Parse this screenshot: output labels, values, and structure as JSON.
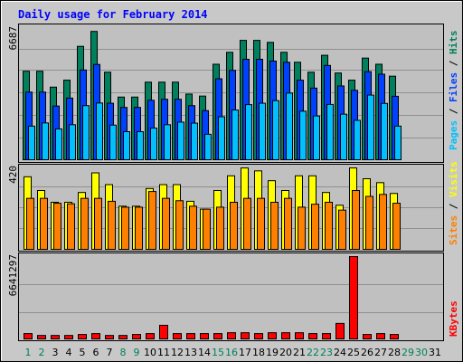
{
  "chart_data": [
    {
      "type": "bar",
      "title": "Daily usage for February 2014",
      "panel": "top",
      "ymax_label": "6687",
      "ymax": 6687,
      "series_labels": [
        "Pages",
        "Files",
        "Hits"
      ],
      "categories": [
        "1",
        "2",
        "3",
        "4",
        "5",
        "6",
        "7",
        "8",
        "9",
        "10",
        "11",
        "12",
        "13",
        "14",
        "15",
        "16",
        "17",
        "18",
        "19",
        "20",
        "21",
        "22",
        "23",
        "24",
        "25",
        "26",
        "27",
        "28",
        "29",
        "30",
        "31"
      ],
      "series": [
        {
          "name": "Hits",
          "values": [
            4450,
            4450,
            3650,
            4000,
            5700,
            6450,
            4400,
            3150,
            3150,
            3900,
            3900,
            3900,
            3300,
            3200,
            4800,
            5400,
            6000,
            6000,
            5900,
            5400,
            4900,
            4400,
            5250,
            4360,
            4000,
            5110,
            4800,
            4200,
            0,
            0,
            0
          ]
        },
        {
          "name": "Files",
          "values": [
            3400,
            3400,
            2700,
            3100,
            4510,
            4790,
            2840,
            2630,
            2630,
            2990,
            3040,
            3040,
            2720,
            2470,
            4070,
            4490,
            5050,
            5050,
            4960,
            4900,
            4000,
            3600,
            4740,
            3710,
            3490,
            4430,
            4300,
            3190,
            0,
            0,
            0
          ]
        },
        {
          "name": "Pages",
          "values": [
            1690,
            1850,
            1550,
            1760,
            2720,
            2850,
            1740,
            1410,
            1410,
            1590,
            1760,
            1890,
            1840,
            1280,
            2160,
            2500,
            2770,
            2840,
            2970,
            3350,
            2440,
            2200,
            2780,
            2290,
            1980,
            3250,
            2830,
            1690,
            0,
            0,
            0
          ]
        }
      ]
    },
    {
      "type": "bar",
      "panel": "middle",
      "ymax_label": "420",
      "ymax": 420,
      "series_labels": [
        "Sites",
        "Visits"
      ],
      "categories": [
        "1",
        "2",
        "3",
        "4",
        "5",
        "6",
        "7",
        "8",
        "9",
        "10",
        "11",
        "12",
        "13",
        "14",
        "15",
        "16",
        "17",
        "18",
        "19",
        "20",
        "21",
        "22",
        "23",
        "24",
        "25",
        "26",
        "27",
        "28",
        "29",
        "30",
        "31"
      ],
      "series": [
        {
          "name": "Visits",
          "values": [
            370,
            300,
            240,
            240,
            290,
            390,
            330,
            220,
            220,
            310,
            330,
            330,
            245,
            205,
            300,
            375,
            415,
            400,
            350,
            300,
            375,
            375,
            290,
            225,
            415,
            360,
            340,
            285,
            0,
            0,
            0
          ]
        },
        {
          "name": "Sites",
          "values": [
            260,
            260,
            235,
            232,
            260,
            260,
            245,
            215,
            215,
            295,
            260,
            248,
            220,
            205,
            215,
            240,
            260,
            260,
            240,
            260,
            215,
            230,
            240,
            200,
            300,
            270,
            280,
            235,
            0,
            0,
            0
          ]
        }
      ]
    },
    {
      "type": "bar",
      "panel": "bottom",
      "ymax_label": "6641297",
      "ymax": 6641297,
      "series_labels": [
        "KBytes"
      ],
      "categories": [
        "1",
        "2",
        "3",
        "4",
        "5",
        "6",
        "7",
        "8",
        "9",
        "10",
        "11",
        "12",
        "13",
        "14",
        "15",
        "16",
        "17",
        "18",
        "19",
        "20",
        "21",
        "22",
        "23",
        "24",
        "25",
        "26",
        "27",
        "28",
        "29",
        "30",
        "31"
      ],
      "weekend_days": [
        "1",
        "2",
        "8",
        "9",
        "15",
        "16",
        "22",
        "23",
        "29",
        "30"
      ],
      "series": [
        {
          "name": "KBytes",
          "values": [
            430000,
            280000,
            280000,
            280000,
            360000,
            430000,
            280000,
            280000,
            360000,
            430000,
            1100000,
            430000,
            430000,
            430000,
            430000,
            500000,
            500000,
            430000,
            500000,
            500000,
            500000,
            430000,
            430000,
            1250000,
            6641297,
            360000,
            430000,
            360000,
            0,
            0,
            0
          ]
        }
      ]
    }
  ],
  "colors": {
    "hits": "#00805c",
    "files": "#0040ff",
    "pages": "#00c0ff",
    "visits": "#ffff00",
    "sites": "#ff8000",
    "kbytes": "#ff0000",
    "title": "#0000ff",
    "weekday_label": "#000000",
    "weekend_label": "#00805c",
    "panel_bg": "#c0c0c0",
    "frame_bg": "#c8c8c8"
  }
}
